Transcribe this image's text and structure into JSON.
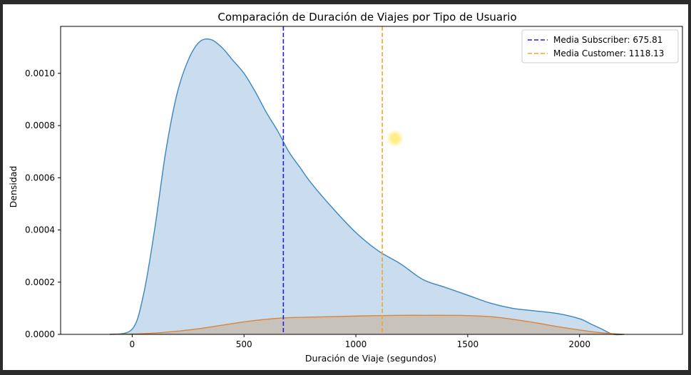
{
  "chart_data": {
    "type": "area",
    "title": "Comparación de Duración de Viajes por Tipo de Usuario",
    "xlabel": "Duración de Viaje (segundos)",
    "ylabel": "Densidad",
    "xlim": [
      -320,
      2460
    ],
    "ylim": [
      0,
      0.00118
    ],
    "x_ticks": [
      0,
      500,
      1000,
      1500,
      2000
    ],
    "x_tick_labels": [
      "0",
      "500",
      "1000",
      "1500",
      "2000"
    ],
    "y_ticks": [
      0,
      0.0002,
      0.0004,
      0.0006,
      0.0008,
      0.001
    ],
    "y_tick_labels": [
      "0.0000",
      "0.0002",
      "0.0004",
      "0.0006",
      "0.0008",
      "0.0010"
    ],
    "grid": false,
    "legend_position": "top-right",
    "series": [
      {
        "name": "Subscriber",
        "color": "#3a86bf",
        "fill": "#c4d9ec",
        "x": [
          -100,
          0,
          50,
          100,
          150,
          200,
          250,
          300,
          350,
          400,
          450,
          500,
          550,
          600,
          650,
          700,
          750,
          800,
          900,
          1000,
          1100,
          1200,
          1300,
          1400,
          1500,
          1600,
          1700,
          1800,
          1900,
          2000,
          2050,
          2100,
          2150,
          2200
        ],
        "y": [
          0,
          2e-05,
          0.00015,
          0.0004,
          0.0007,
          0.00092,
          0.00105,
          0.00112,
          0.00113,
          0.0011,
          0.00105,
          0.001,
          0.00093,
          0.00085,
          0.00078,
          0.0007,
          0.00064,
          0.00058,
          0.00048,
          0.00039,
          0.00032,
          0.00027,
          0.00021,
          0.00018,
          0.00015,
          0.00012,
          0.0001,
          9e-05,
          8e-05,
          6e-05,
          4e-05,
          2e-05,
          0.0,
          0.0
        ]
      },
      {
        "name": "Customer",
        "color": "#d9853b",
        "fill": "#c6c0b6",
        "x": [
          -100,
          0,
          100,
          200,
          300,
          400,
          500,
          600,
          700,
          800,
          900,
          1000,
          1100,
          1200,
          1300,
          1400,
          1500,
          1600,
          1700,
          1800,
          1900,
          2000,
          2100,
          2200
        ],
        "y": [
          0,
          1.5e-06,
          5e-06,
          1.2e-05,
          2.2e-05,
          3.5e-05,
          4.8e-05,
          5.8e-05,
          6.4e-05,
          6.6e-05,
          6.8e-05,
          7e-05,
          7.2e-05,
          7.3e-05,
          7.3e-05,
          7.3e-05,
          7.2e-05,
          6.8e-05,
          5.8e-05,
          4.5e-05,
          3e-05,
          1.7e-05,
          6e-06,
          0.0
        ]
      }
    ],
    "mean_lines": [
      {
        "label": "Media Subscriber: 675.81",
        "x": 675.81,
        "color": "#1f1fe6"
      },
      {
        "label": "Media Customer: 1118.13",
        "x": 1118.13,
        "color": "#f5a623"
      }
    ]
  }
}
